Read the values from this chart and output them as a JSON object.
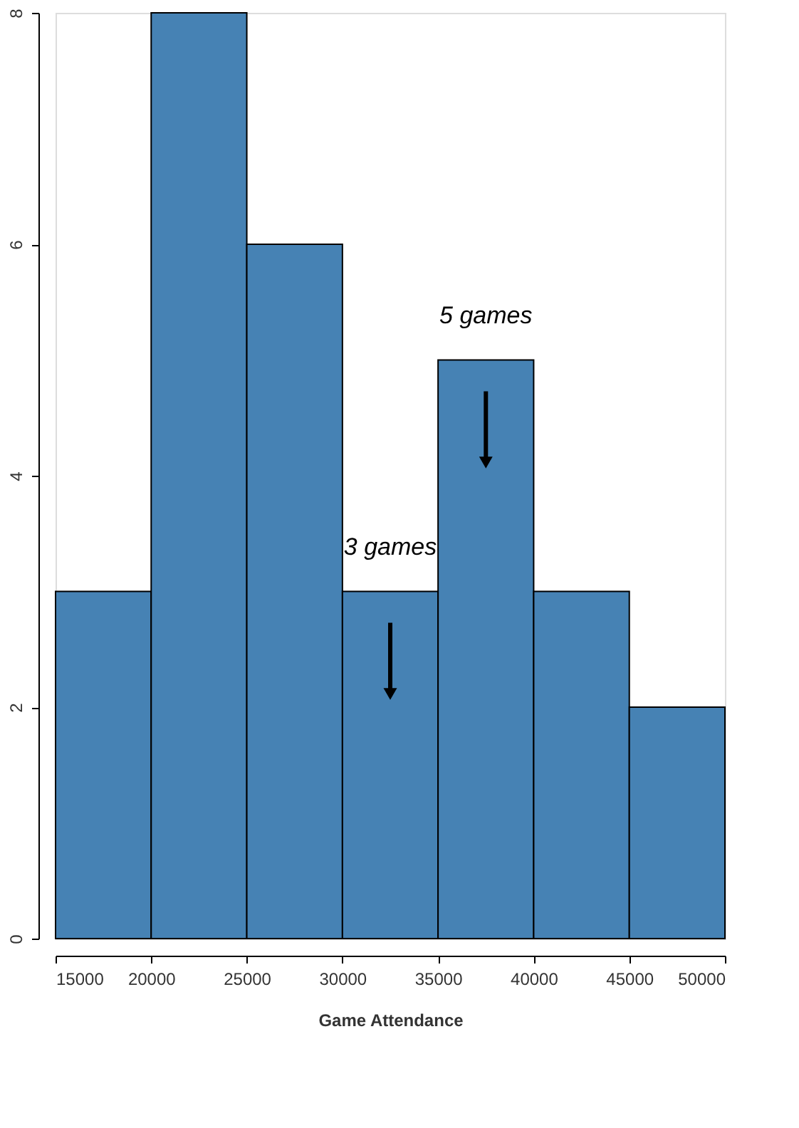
{
  "chart_data": {
    "type": "histogram",
    "xlabel": "Game Attendance",
    "bins": [
      15000,
      20000,
      25000,
      30000,
      35000,
      40000,
      45000,
      50000
    ],
    "values": [
      3,
      8,
      6,
      3,
      5,
      3,
      2
    ],
    "color": "#4682b4",
    "xlim": [
      15000,
      50000
    ],
    "xticks": [
      15000,
      20000,
      25000,
      30000,
      35000,
      40000,
      45000,
      50000
    ],
    "ylim": [
      0,
      8
    ],
    "yticks": [
      0,
      2,
      4,
      6,
      8
    ],
    "grid": false,
    "annotations": [
      {
        "text": "5 games",
        "x": 37500,
        "y": 5
      },
      {
        "text": "3 games",
        "x": 32500,
        "y": 3
      }
    ]
  }
}
